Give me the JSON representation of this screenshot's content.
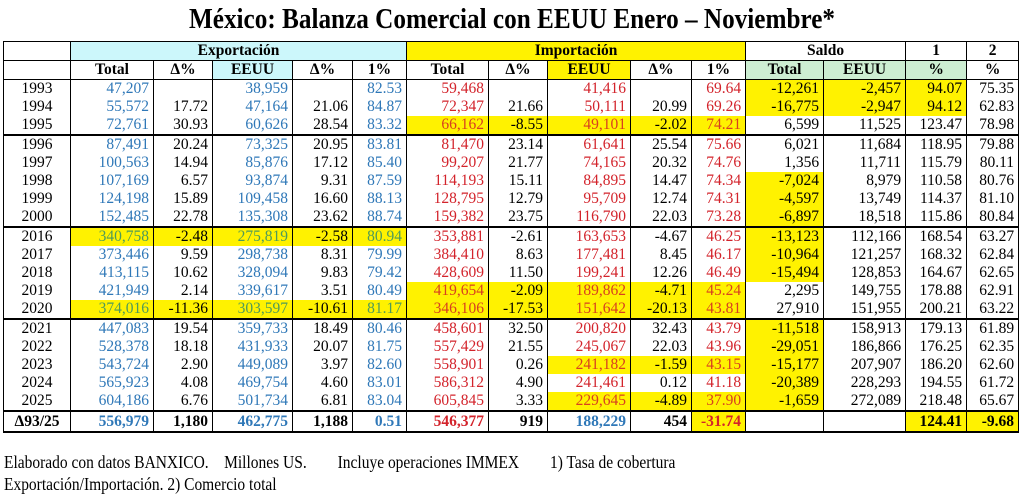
{
  "title": "México: Balanza Comercial con EEUU Enero – Noviembre*",
  "colors": {
    "export_text": "#2f78b8",
    "import_text": "#d3232b",
    "highlight": "#fff200",
    "export_header": "#ccf7fb",
    "saldo_header": "#cdeed2"
  },
  "group_headers": {
    "exportacion": "Exportación",
    "importacion": "Importación",
    "saldo": "Saldo",
    "col1": "1",
    "col2": "2"
  },
  "sub_headers": [
    "Total",
    "Δ%",
    "EEUU",
    "Δ%",
    "1%",
    "Total",
    "Δ%",
    "EEUU",
    "Δ%",
    "1%",
    "Total",
    "EEUU",
    "%",
    "%"
  ],
  "groups": [
    {
      "rows": [
        {
          "cells": [
            "1993",
            "47,207",
            "",
            "38,959",
            "",
            "82.53",
            "59,468",
            "",
            "41,416",
            "",
            "69.64",
            "-12,261",
            "-2,457",
            "94.07",
            "75.35"
          ],
          "highlight": [
            11,
            12,
            13
          ]
        },
        {
          "cells": [
            "1994",
            "55,572",
            "17.72",
            "47,164",
            "21.06",
            "84.87",
            "72,347",
            "21.66",
            "50,111",
            "20.99",
            "69.26",
            "-16,775",
            "-2,947",
            "94.12",
            "62.83"
          ],
          "highlight": [
            11,
            12,
            13
          ]
        },
        {
          "cells": [
            "1995",
            "72,761",
            "30.93",
            "60,626",
            "28.54",
            "83.32",
            "66,162",
            "-8.55",
            "49,101",
            "-2.02",
            "74.21",
            "6,599",
            "11,525",
            "123.47",
            "78.98"
          ],
          "highlight": [
            6,
            7,
            8,
            9,
            10
          ]
        }
      ]
    },
    {
      "rows": [
        {
          "cells": [
            "1996",
            "87,491",
            "20.24",
            "73,325",
            "20.95",
            "83.81",
            "81,470",
            "23.14",
            "61,641",
            "25.54",
            "75.66",
            "6,021",
            "11,684",
            "118.95",
            "79.88"
          ],
          "highlight": []
        },
        {
          "cells": [
            "1997",
            "100,563",
            "14.94",
            "85,876",
            "17.12",
            "85.40",
            "99,207",
            "21.77",
            "74,165",
            "20.32",
            "74.76",
            "1,356",
            "11,711",
            "115.79",
            "80.11"
          ],
          "highlight": []
        },
        {
          "cells": [
            "1998",
            "107,169",
            "6.57",
            "93,874",
            "9.31",
            "87.59",
            "114,193",
            "15.11",
            "84,895",
            "14.47",
            "74.34",
            "-7,024",
            "8,979",
            "110.58",
            "80.76"
          ],
          "highlight": [
            11
          ]
        },
        {
          "cells": [
            "1999",
            "124,198",
            "15.89",
            "109,458",
            "16.60",
            "88.13",
            "128,795",
            "12.79",
            "95,709",
            "12.74",
            "74.31",
            "-4,597",
            "13,749",
            "114.37",
            "81.10"
          ],
          "highlight": [
            11
          ]
        },
        {
          "cells": [
            "2000",
            "152,485",
            "22.78",
            "135,308",
            "23.62",
            "88.74",
            "159,382",
            "23.75",
            "116,790",
            "22.03",
            "73.28",
            "-6,897",
            "18,518",
            "115.86",
            "80.84"
          ],
          "highlight": [
            11
          ]
        }
      ]
    },
    {
      "rows": [
        {
          "cells": [
            "2016",
            "340,758",
            "-2.48",
            "275,819",
            "-2.58",
            "80.94",
            "353,881",
            "-2.61",
            "163,653",
            "-4.67",
            "46.25",
            "-13,123",
            "112,166",
            "168.54",
            "63.27"
          ],
          "highlight": [
            1,
            2,
            3,
            4,
            5,
            11
          ]
        },
        {
          "cells": [
            "2017",
            "373,446",
            "9.59",
            "298,738",
            "8.31",
            "79.99",
            "384,410",
            "8.63",
            "177,481",
            "8.45",
            "46.17",
            "-10,964",
            "121,257",
            "168.32",
            "62.84"
          ],
          "highlight": [
            11
          ]
        },
        {
          "cells": [
            "2018",
            "413,115",
            "10.62",
            "328,094",
            "9.83",
            "79.42",
            "428,609",
            "11.50",
            "199,241",
            "12.26",
            "46.49",
            "-15,494",
            "128,853",
            "164.67",
            "62.65"
          ],
          "highlight": [
            11
          ]
        },
        {
          "cells": [
            "2019",
            "421,949",
            "2.14",
            "339,617",
            "3.51",
            "80.49",
            "419,654",
            "-2.09",
            "189,862",
            "-4.71",
            "45.24",
            "2,295",
            "149,755",
            "178.88",
            "62.91"
          ],
          "highlight": [
            6,
            7,
            8,
            9,
            10
          ]
        },
        {
          "cells": [
            "2020",
            "374,016",
            "-11.36",
            "303,597",
            "-10.61",
            "81.17",
            "346,106",
            "-17.53",
            "151,642",
            "-20.13",
            "43.81",
            "27,910",
            "151,955",
            "200.21",
            "63.22"
          ],
          "highlight": [
            1,
            2,
            3,
            4,
            5,
            6,
            7,
            8,
            9,
            10
          ]
        }
      ]
    },
    {
      "rows": [
        {
          "cells": [
            "2021",
            "447,083",
            "19.54",
            "359,733",
            "18.49",
            "80.46",
            "458,601",
            "32.50",
            "200,820",
            "32.43",
            "43.79",
            "-11,518",
            "158,913",
            "179.13",
            "61.89"
          ],
          "highlight": [
            11
          ]
        },
        {
          "cells": [
            "2022",
            "528,378",
            "18.18",
            "431,933",
            "20.07",
            "81.75",
            "557,429",
            "21.55",
            "245,067",
            "22.03",
            "43.96",
            "-29,051",
            "186,866",
            "176.25",
            "62.35"
          ],
          "highlight": [
            11
          ]
        },
        {
          "cells": [
            "2023",
            "543,724",
            "2.90",
            "449,089",
            "3.97",
            "82.60",
            "558,901",
            "0.26",
            "241,182",
            "-1.59",
            "43.15",
            "-15,177",
            "207,907",
            "186.20",
            "62.60"
          ],
          "highlight": [
            8,
            9,
            10,
            11
          ]
        },
        {
          "cells": [
            "2024",
            "565,923",
            "4.08",
            "469,754",
            "4.60",
            "83.01",
            "586,312",
            "4.90",
            "241,461",
            "0.12",
            "41.18",
            "-20,389",
            "228,293",
            "194.55",
            "61.72"
          ],
          "highlight": [
            11
          ]
        },
        {
          "cells": [
            "2025",
            "604,186",
            "6.76",
            "501,734",
            "6.81",
            "83.04",
            "605,845",
            "3.33",
            "229,645",
            "-4.89",
            "37.90",
            "-1,659",
            "272,089",
            "218.48",
            "65.67"
          ],
          "highlight": [
            8,
            9,
            10,
            11
          ]
        }
      ]
    }
  ],
  "total_row": {
    "cells": [
      "Δ93/25",
      "556,979",
      "1,180",
      "462,775",
      "1,188",
      "0.51",
      "546,377",
      "919",
      "188,229",
      "454",
      "-31.74",
      "",
      "",
      "124.41",
      "-9.68"
    ],
    "highlight": [
      10,
      13,
      14
    ]
  },
  "footer": {
    "line1": "Elaborado con datos BANXICO.    Millones US.        Incluye operaciones IMMEX        1) Tasa de cobertura",
    "line2": "Exportación/Importación. 2) Comercio total"
  }
}
